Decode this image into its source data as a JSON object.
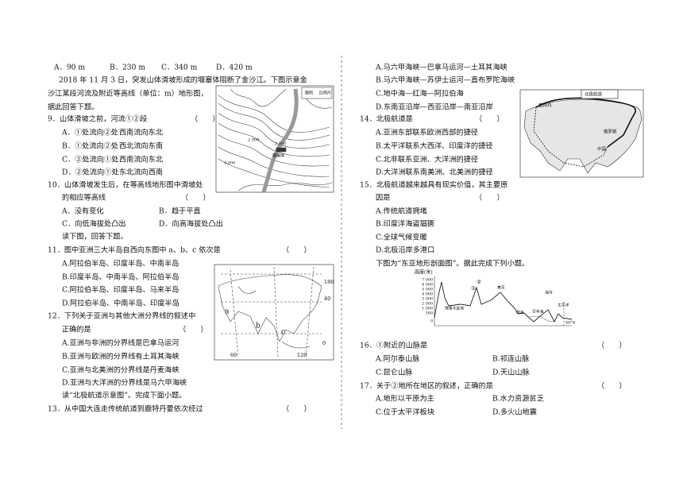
{
  "left": {
    "q8_options": [
      "A．90 m",
      "B．230 m",
      "C．340 m",
      "D．420 m"
    ],
    "passage_1": [
      "2018 年 11 月 3 日，突发山体滑坡形成的堰塞体阻断了金沙江。下图示意金",
      "沙江某段河流及附近等高线（单位：m）地形图，",
      "据此回答下题。"
    ],
    "q9": {
      "stem": "9．山体滑坡之前，河流①②段",
      "answer_blank": "（　　）",
      "options": [
        {
          "label": "A．①处流向②处",
          "detail": "西南流向东北"
        },
        {
          "label": "B．①处流向②处",
          "detail": "西北流向东南"
        },
        {
          "label": "C．②处流向①处",
          "detail": "西南流向东北"
        },
        {
          "label": "D．②处流向①处",
          "detail": "东北流向西南"
        }
      ]
    },
    "q10": {
      "stem": [
        "10．山体滑坡发生后，在等高线地形图中滑坡处",
        "的相应等高线"
      ],
      "answer_blank": "（　　）",
      "options": [
        "A．没有变化",
        "B．趋于平直",
        "C．向低海拔处凸出",
        "D．向高海拔处凸出"
      ]
    },
    "passage_2": "读下图，回答下题。",
    "q11": {
      "stem": "11．图中亚洲三大半岛自西向东图中 a、b、c 依次是",
      "answer_blank": "（　　）",
      "options": [
        "A.阿拉伯半岛、印度半岛、中南半岛",
        "B.印度半岛、中南半岛、阿拉伯半岛",
        "C.阿拉伯半岛、印度半岛、马来半岛",
        "D.阿拉伯半岛、中南半岛、印度半岛"
      ]
    },
    "q12": {
      "stem": [
        "12．下列关于亚洲与其他大洲分界线的叙述中",
        "正确的是"
      ],
      "answer_blank": "（　　）",
      "options": [
        "A.亚洲与非洲的分界线是巴拿马运河",
        "B.亚洲与欧洲的分界线有土耳其海峡",
        "C.亚洲与北美洲的分界线是丹麦海峡",
        "D.亚洲与大洋洲的分界线是马六甲海峡"
      ]
    },
    "passage_3": "读“北极航道示意图”。完成下面小题。",
    "q13": {
      "stem": "13．从中国大连走传统航道到鹿特丹要依次经过",
      "answer_blank": "（　　）"
    }
  },
  "right": {
    "q13_options": [
      "A.马六甲海峡—巴拿马运河—土耳其海峡",
      "B.马六甲海峡—苏伊士运河—直布罗陀海峡",
      "C.地中海—红海—阿拉伯海",
      "D.东南亚沿岸—西亚沿岸—南亚沿岸"
    ],
    "q14": {
      "stem": "14．北极航道是",
      "answer_blank": "（　　）",
      "options": [
        "A.亚洲东部联系欧洲西部的捷径",
        "B.太平洋联系大西洋、印度洋的捷径",
        "C.北非联系亚洲、大洋洲的捷径",
        "D.大洋洲联系南美洲、北美洲的捷径"
      ]
    },
    "q15": {
      "stem": [
        "15．北极航道越来越具有现实价值，其主要原",
        "因是"
      ],
      "answer_blank": "（　　）",
      "options": [
        "A.传统航道拥堵",
        "B.印度洋海盗猖獗",
        "C.全球气候变暖",
        "D.北极沿岸多港口"
      ]
    },
    "passage_4": "下图为“东亚地形剖面图”。据此完成下列小题。",
    "q16": {
      "stem": "16．①附近的山脉是",
      "answer_blank": "（　　）",
      "options": [
        "A.阿尔泰山脉",
        "B.祁连山脉",
        "C.昆仑山脉",
        "D.天山山脉"
      ]
    },
    "q17": {
      "stem": "17．关于②地所在地区的叙述，正确的是",
      "answer_blank": "（　　）",
      "options": [
        "A.地形以平原为主",
        "B.水力资源贫乏",
        "C.位于太平洋板块",
        "D.多火山地震"
      ]
    }
  },
  "figures": {
    "topo_map": {
      "labels": [
        "图例",
        "比例尺",
        "2 900",
        "2 950",
        "3 000",
        "堰塞体"
      ]
    },
    "asia_map": {
      "labels": [
        "180",
        "40",
        "a",
        "b",
        "c",
        "0",
        "60",
        "120"
      ]
    },
    "arctic_map": {
      "labels": [
        "北极航道",
        "鹿特丹",
        "俄罗斯",
        "中国"
      ]
    },
    "profile": {
      "y_axis_title": "高度(米)",
      "y_labels": [
        "7 000",
        "6 000",
        "5 000",
        "4 000",
        "3 000",
        "2 000",
        "1 000",
        "500",
        "0"
      ],
      "labels": [
        "①",
        "塔里木盆地",
        "②",
        "黄河",
        "渤海",
        "日本海",
        "海沟",
        "太平洋"
      ],
      "latitude": "40°N"
    }
  }
}
